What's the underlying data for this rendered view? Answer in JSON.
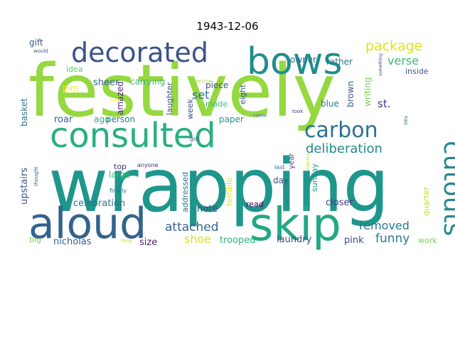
{
  "title": "1943-12-06",
  "chart_data": {
    "type": "wordcloud",
    "title": "1943-12-06",
    "words": [
      {
        "text": "festively",
        "color": "#95d840"
      },
      {
        "text": "wrapping",
        "color": "#1f968b"
      },
      {
        "text": "consulted",
        "color": "#29af7f"
      },
      {
        "text": "bows",
        "color": "#1f8e8d"
      },
      {
        "text": "aloud",
        "color": "#33638d"
      },
      {
        "text": "skip",
        "color": "#22a884"
      },
      {
        "text": "decorated",
        "color": "#3b528b"
      },
      {
        "text": "carbon",
        "color": "#2d718e"
      },
      {
        "text": "cutouts",
        "color": "#238a8d"
      },
      {
        "text": "deliberation",
        "color": "#238a8d"
      },
      {
        "text": "package",
        "color": "#dce319"
      },
      {
        "text": "verse",
        "color": "#3cbb75"
      },
      {
        "text": "set",
        "color": "#2c728e"
      },
      {
        "text": "attached",
        "color": "#33638d"
      },
      {
        "text": "removed",
        "color": "#2a788e"
      },
      {
        "text": "funny",
        "color": "#2a788e"
      },
      {
        "text": "shoe",
        "color": "#dce319"
      },
      {
        "text": "trooped",
        "color": "#2db27d"
      },
      {
        "text": "laundry",
        "color": "#3e4a89"
      },
      {
        "text": "pink",
        "color": "#3f4788"
      },
      {
        "text": "nicholas",
        "color": "#365d8d"
      },
      {
        "text": "size",
        "color": "#481f70"
      },
      {
        "text": "celebration",
        "color": "#2c728e"
      },
      {
        "text": "note",
        "color": "#3e4a89"
      },
      {
        "text": "read",
        "color": "#440154"
      },
      {
        "text": "closer",
        "color": "#443983"
      },
      {
        "text": "upstairs",
        "color": "#3b528b"
      },
      {
        "text": "basket",
        "color": "#2c728e"
      },
      {
        "text": "roar",
        "color": "#33638d"
      },
      {
        "text": "ago",
        "color": "#29af7f"
      },
      {
        "text": "person",
        "color": "#2a788e"
      },
      {
        "text": "amazed",
        "color": "#482677"
      },
      {
        "text": "sheer",
        "color": "#31688e"
      },
      {
        "text": "carrying",
        "color": "#3cbb75"
      },
      {
        "text": "piece",
        "color": "#3b528b"
      },
      {
        "text": "owner",
        "color": "#31688e"
      },
      {
        "text": "rather",
        "color": "#2d718e"
      },
      {
        "text": "gift",
        "color": "#3b528b"
      },
      {
        "text": "idea",
        "color": "#5ec962"
      },
      {
        "text": "pim",
        "color": "#fde725"
      },
      {
        "text": "laughter",
        "color": "#3e4a89"
      },
      {
        "text": "week",
        "color": "#3b528b"
      },
      {
        "text": "made",
        "color": "#3cbb75"
      },
      {
        "text": "eight",
        "color": "#3b528b"
      },
      {
        "text": "paper",
        "color": "#1f968b"
      },
      {
        "text": "blue",
        "color": "#2a788e"
      },
      {
        "text": "brown",
        "color": "#3b528b"
      },
      {
        "text": "writing",
        "color": "#75d054"
      },
      {
        "text": "st.",
        "color": "#453781"
      },
      {
        "text": "inside",
        "color": "#3b528b"
      },
      {
        "text": "year",
        "color": "#3e4a89"
      },
      {
        "text": "sunday",
        "color": "#1f968b"
      },
      {
        "text": "quarter",
        "color": "#b8de29"
      },
      {
        "text": "day",
        "color": "#3b528b"
      },
      {
        "text": "last",
        "color": "#2c728e"
      },
      {
        "text": "terrible",
        "color": "#dce319"
      },
      {
        "text": "addressed",
        "color": "#2c728e"
      },
      {
        "text": "large",
        "color": "#3cbb75"
      },
      {
        "text": "top",
        "color": "#46327e"
      },
      {
        "text": "anyone",
        "color": "#482677"
      },
      {
        "text": "thought",
        "color": "#365d8d"
      },
      {
        "text": "finally",
        "color": "#2a788e"
      },
      {
        "text": "big",
        "color": "#7ad151"
      },
      {
        "text": "long",
        "color": "#b8de29"
      },
      {
        "text": "work",
        "color": "#75d054"
      },
      {
        "text": "would",
        "color": "#365d8d"
      },
      {
        "text": "something",
        "color": "#3e4a89"
      },
      {
        "text": "little",
        "color": "#2c728e"
      },
      {
        "text": "came",
        "color": "#2c728e"
      },
      {
        "text": "took",
        "color": "#3e4a89"
      },
      {
        "text": "got",
        "color": "#3b528b"
      },
      {
        "text": "everyone",
        "color": "#9fda3a"
      },
      {
        "text": "back",
        "color": "#fde725"
      },
      {
        "text": "evening",
        "color": "#b8de29"
      }
    ]
  }
}
